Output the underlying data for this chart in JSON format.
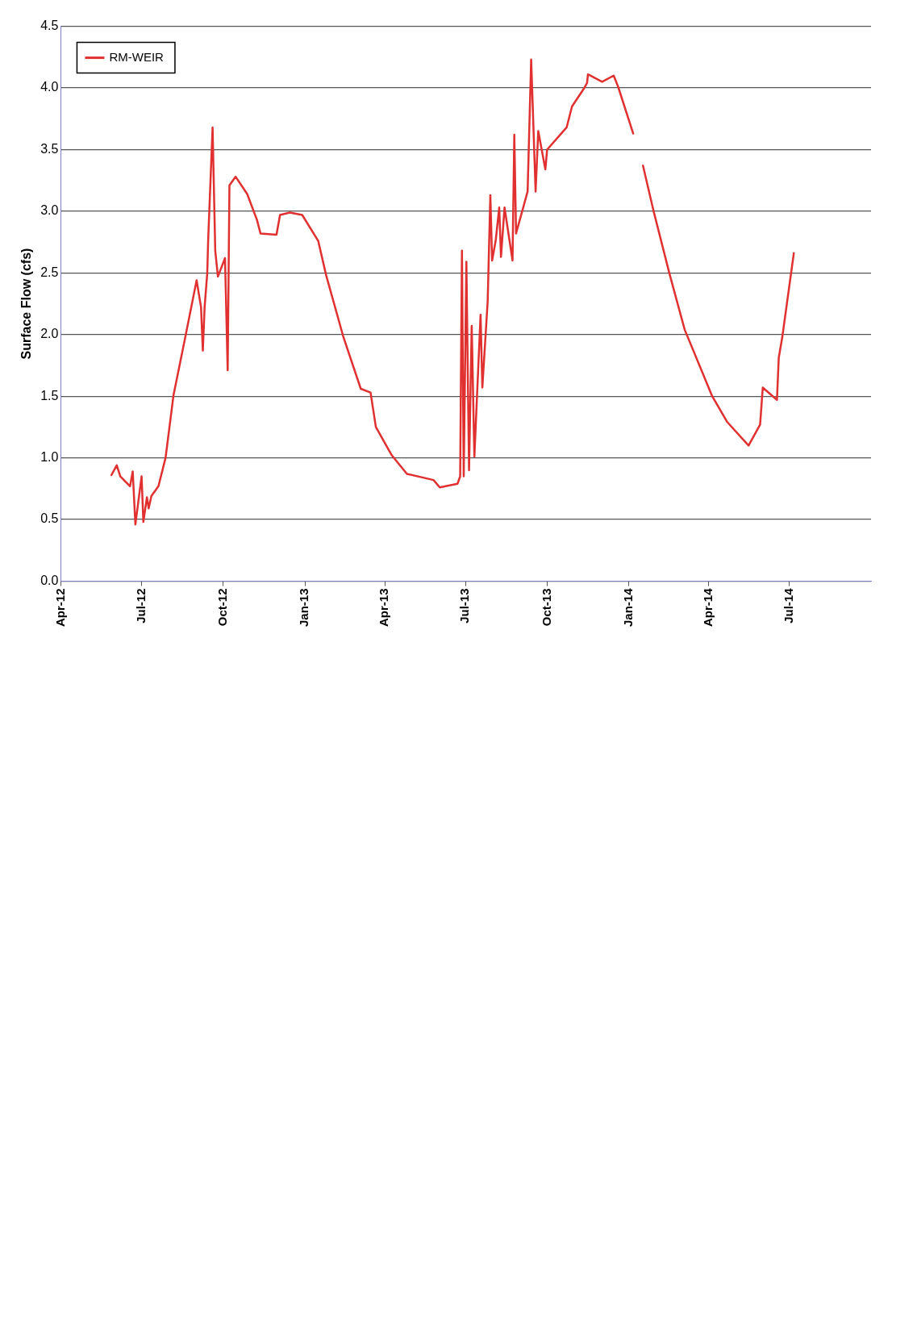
{
  "chart_data": {
    "type": "line",
    "ylabel": "Surface Flow (cfs)",
    "xlim": [
      "2012-04-01",
      "2014-10-01"
    ],
    "xticks": [
      {
        "value": "2012-04-01",
        "label": "Apr-12"
      },
      {
        "value": "2012-07-01",
        "label": "Jul-12"
      },
      {
        "value": "2012-10-01",
        "label": "Oct-12"
      },
      {
        "value": "2013-01-01",
        "label": "Jan-13"
      },
      {
        "value": "2013-04-01",
        "label": "Apr-13"
      },
      {
        "value": "2013-07-01",
        "label": "Jul-13"
      },
      {
        "value": "2013-10-01",
        "label": "Oct-13"
      },
      {
        "value": "2014-01-01",
        "label": "Jan-14"
      },
      {
        "value": "2014-04-01",
        "label": "Apr-14"
      },
      {
        "value": "2014-07-01",
        "label": "Jul-14"
      }
    ],
    "ylim": [
      0,
      4.5
    ],
    "yticks": [
      {
        "value": 0,
        "label": "0.0"
      },
      {
        "value": 0.5,
        "label": "0.5"
      },
      {
        "value": 1,
        "label": "1.0"
      },
      {
        "value": 1.5,
        "label": "1.5"
      },
      {
        "value": 2,
        "label": "2.0"
      },
      {
        "value": 2.5,
        "label": "2.5"
      },
      {
        "value": 3,
        "label": "3.0"
      },
      {
        "value": 3.5,
        "label": "3.5"
      },
      {
        "value": 4,
        "label": "4.0"
      },
      {
        "value": 4.5,
        "label": "4.5"
      }
    ],
    "grid": "y",
    "legend": "top left",
    "marker": "none",
    "line_style": "solid",
    "series": [
      {
        "name": "RM-WEIR",
        "color": "#e03030",
        "x": [
          "2012-05-28",
          "2012-06-03",
          "2012-06-07",
          "2012-06-18",
          "2012-06-21",
          "2012-06-24",
          "2012-07-01",
          "2012-07-03",
          "2012-07-07",
          "2012-07-09",
          "2012-07-12",
          "2012-07-20",
          "2012-07-28",
          "2012-08-06",
          "2012-08-19",
          "2012-09-01",
          "2012-09-06",
          "2012-09-08",
          "2012-09-10",
          "2012-09-13",
          "2012-09-14",
          "2012-09-19",
          "2012-09-22",
          "2012-09-25",
          "2012-10-03",
          "2012-10-06",
          "2012-10-08",
          "2012-10-15",
          "2012-10-28",
          "2012-11-08",
          "2012-11-12",
          "2012-11-30",
          "2012-12-04",
          "2012-12-15",
          "2012-12-29",
          "2013-01-16",
          "2013-01-25",
          "2013-02-13",
          "2013-03-05",
          "2013-03-16",
          "2013-03-22",
          "2013-04-09",
          "2013-04-26",
          "2013-05-26",
          "2013-06-02",
          "2013-06-22",
          "2013-06-25",
          "2013-06-27",
          "2013-06-29",
          "2013-07-02",
          "2013-07-05",
          "2013-07-08",
          "2013-07-11",
          "2013-07-18",
          "2013-07-20",
          "2013-07-26",
          "2013-07-29",
          "2013-07-31",
          "2013-08-04",
          "2013-08-08",
          "2013-08-10",
          "2013-08-14",
          "2013-08-23",
          "2013-08-25",
          "2013-08-27",
          "2013-09-09",
          "2013-09-13",
          "2013-09-18",
          "2013-09-21",
          "2013-09-29",
          "2013-10-01",
          "2013-10-23",
          "2013-10-29",
          "2013-11-11",
          "2013-11-15",
          "2013-11-16",
          "2013-12-02",
          "2013-12-15",
          "2013-12-20",
          "2014-01-06",
          "2014-01-12",
          "2014-01-17",
          "2014-01-29",
          "2014-02-16",
          "2014-03-05",
          "2014-04-05",
          "2014-04-22",
          "2014-05-16",
          "2014-05-26",
          "2014-05-29",
          "2014-06-01",
          "2014-06-17",
          "2014-06-19",
          "2014-06-23",
          "2014-07-06"
        ],
        "values": [
          0.86,
          0.94,
          0.85,
          0.77,
          0.89,
          0.46,
          0.85,
          0.48,
          0.68,
          0.59,
          0.69,
          0.77,
          1.0,
          1.51,
          1.97,
          2.44,
          2.22,
          1.87,
          2.22,
          2.5,
          2.76,
          3.68,
          2.68,
          2.47,
          2.62,
          1.71,
          3.21,
          3.28,
          3.14,
          2.93,
          2.82,
          2.81,
          2.97,
          2.99,
          2.97,
          2.76,
          2.48,
          1.99,
          1.56,
          1.53,
          1.25,
          1.02,
          0.87,
          0.82,
          0.76,
          0.79,
          0.85,
          2.68,
          0.85,
          2.59,
          0.9,
          2.07,
          1.01,
          2.16,
          1.57,
          2.27,
          3.13,
          2.6,
          2.76,
          3.03,
          2.63,
          3.03,
          2.6,
          3.62,
          2.82,
          3.16,
          4.23,
          3.16,
          3.65,
          3.34,
          3.5,
          3.68,
          3.85,
          3.99,
          4.04,
          4.11,
          4.05,
          4.1,
          4.01,
          3.63,
          null,
          3.37,
          3.0,
          2.49,
          2.04,
          1.5,
          1.29,
          1.1,
          1.23,
          1.27,
          1.57,
          1.47,
          1.81,
          1.98,
          2.66
        ]
      }
    ]
  }
}
